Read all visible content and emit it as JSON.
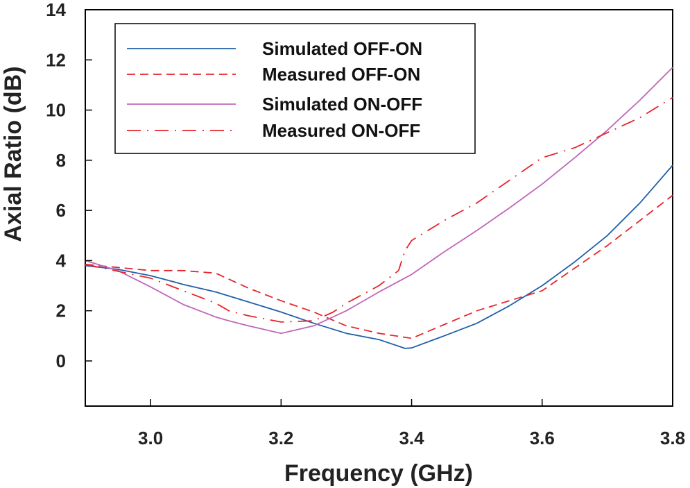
{
  "chart_data": {
    "type": "line",
    "title": "",
    "xlabel": "Frequency (GHz)",
    "ylabel": "Axial Ratio (dB)",
    "xlim": [
      2.9,
      3.8
    ],
    "ylim": [
      -1.8,
      14
    ],
    "xticks": [
      3.0,
      3.2,
      3.4,
      3.6,
      3.8
    ],
    "xtick_labels": [
      "3.0",
      "3.2",
      "3.4",
      "3.6",
      "3.8"
    ],
    "yticks": [
      0,
      2,
      4,
      6,
      8,
      10,
      12,
      14
    ],
    "ytick_labels": [
      "0",
      "2",
      "4",
      "6",
      "8",
      "10",
      "12",
      "14"
    ],
    "grid": false,
    "legend_position": "top-left",
    "series": [
      {
        "name": "Simulated OFF-ON",
        "color": "#1f5fa8",
        "dash": "solid",
        "x": [
          2.9,
          2.95,
          3.0,
          3.05,
          3.1,
          3.15,
          3.2,
          3.25,
          3.3,
          3.35,
          3.39,
          3.4,
          3.45,
          3.5,
          3.55,
          3.6,
          3.65,
          3.7,
          3.75,
          3.8
        ],
        "y": [
          3.8,
          3.65,
          3.4,
          3.05,
          2.75,
          2.35,
          1.95,
          1.5,
          1.1,
          0.85,
          0.5,
          0.52,
          1.0,
          1.5,
          2.2,
          3.0,
          3.95,
          5.0,
          6.3,
          7.8
        ]
      },
      {
        "name": "Measured OFF-ON",
        "color": "#e8242b",
        "dash": "dashed",
        "x": [
          2.9,
          3.0,
          3.05,
          3.1,
          3.15,
          3.2,
          3.25,
          3.3,
          3.35,
          3.4,
          3.45,
          3.5,
          3.55,
          3.6,
          3.65,
          3.7,
          3.75,
          3.8
        ],
        "y": [
          3.85,
          3.6,
          3.6,
          3.5,
          2.9,
          2.4,
          1.95,
          1.4,
          1.1,
          0.9,
          1.45,
          2.0,
          2.4,
          2.8,
          3.7,
          4.6,
          5.6,
          6.6
        ]
      },
      {
        "name": "Simulated ON-OFF",
        "color": "#c066b8",
        "dash": "solid",
        "x": [
          2.9,
          2.95,
          3.0,
          3.05,
          3.1,
          3.12,
          3.15,
          3.2,
          3.25,
          3.3,
          3.35,
          3.4,
          3.45,
          3.5,
          3.55,
          3.6,
          3.65,
          3.7,
          3.75,
          3.8
        ],
        "y": [
          4.0,
          3.6,
          2.95,
          2.25,
          1.75,
          1.6,
          1.4,
          1.1,
          1.4,
          2.0,
          2.75,
          3.45,
          4.35,
          5.2,
          6.1,
          7.05,
          8.1,
          9.2,
          10.4,
          11.7
        ]
      },
      {
        "name": "Measured ON-OFF",
        "color": "#e8242b",
        "dash": "dashdot",
        "x": [
          2.9,
          3.0,
          3.05,
          3.1,
          3.12,
          3.15,
          3.2,
          3.25,
          3.28,
          3.3,
          3.35,
          3.38,
          3.39,
          3.4,
          3.45,
          3.5,
          3.55,
          3.6,
          3.65,
          3.7,
          3.75,
          3.8
        ],
        "y": [
          3.85,
          3.3,
          2.8,
          2.3,
          2.0,
          1.8,
          1.55,
          1.6,
          1.95,
          2.3,
          3.0,
          3.6,
          4.4,
          4.8,
          5.6,
          6.3,
          7.2,
          8.1,
          8.5,
          9.1,
          9.7,
          10.5
        ]
      }
    ]
  }
}
